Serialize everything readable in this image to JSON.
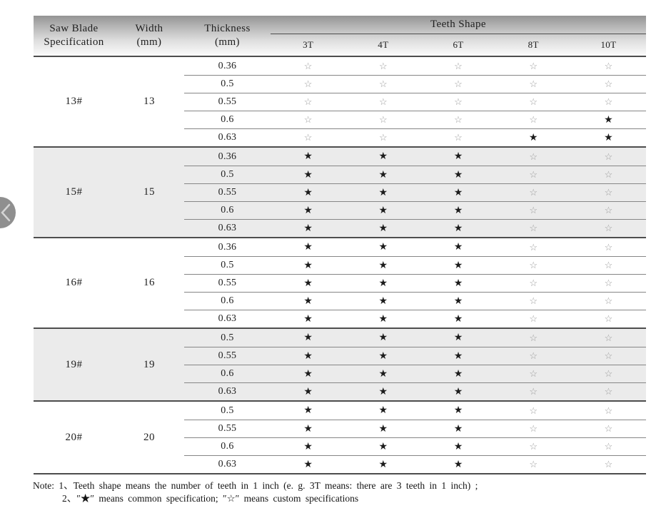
{
  "table": {
    "header": {
      "spec_line1": "Saw Blade",
      "spec_line2": "Specification",
      "width_line1": "Width",
      "width_line2": "(mm)",
      "thickness_line1": "Thickness",
      "thickness_line2": "(mm)",
      "teeth_shape": "Teeth Shape",
      "teeth_cols": [
        "3T",
        "4T",
        "6T",
        "8T",
        "10T"
      ]
    },
    "legend_symbols": {
      "common": "★",
      "custom": "☆"
    },
    "blocks": [
      {
        "spec": "13#",
        "width": "13",
        "shaded": false,
        "rows": [
          {
            "thickness": "0.36",
            "teeth": [
              "custom",
              "custom",
              "custom",
              "custom",
              "custom"
            ]
          },
          {
            "thickness": "0.5",
            "teeth": [
              "custom",
              "custom",
              "custom",
              "custom",
              "custom"
            ]
          },
          {
            "thickness": "0.55",
            "teeth": [
              "custom",
              "custom",
              "custom",
              "custom",
              "custom"
            ]
          },
          {
            "thickness": "0.6",
            "teeth": [
              "custom",
              "custom",
              "custom",
              "custom",
              "common"
            ]
          },
          {
            "thickness": "0.63",
            "teeth": [
              "custom",
              "custom",
              "custom",
              "common",
              "common"
            ]
          }
        ]
      },
      {
        "spec": "15#",
        "width": "15",
        "shaded": true,
        "rows": [
          {
            "thickness": "0.36",
            "teeth": [
              "common",
              "common",
              "common",
              "custom",
              "custom"
            ]
          },
          {
            "thickness": "0.5",
            "teeth": [
              "common",
              "common",
              "common",
              "custom",
              "custom"
            ]
          },
          {
            "thickness": "0.55",
            "teeth": [
              "common",
              "common",
              "common",
              "custom",
              "custom"
            ]
          },
          {
            "thickness": "0.6",
            "teeth": [
              "common",
              "common",
              "common",
              "custom",
              "custom"
            ]
          },
          {
            "thickness": "0.63",
            "teeth": [
              "common",
              "common",
              "common",
              "custom",
              "custom"
            ]
          }
        ]
      },
      {
        "spec": "16#",
        "width": "16",
        "shaded": false,
        "rows": [
          {
            "thickness": "0.36",
            "teeth": [
              "common",
              "common",
              "common",
              "custom",
              "custom"
            ]
          },
          {
            "thickness": "0.5",
            "teeth": [
              "common",
              "common",
              "common",
              "custom",
              "custom"
            ]
          },
          {
            "thickness": "0.55",
            "teeth": [
              "common",
              "common",
              "common",
              "custom",
              "custom"
            ]
          },
          {
            "thickness": "0.6",
            "teeth": [
              "common",
              "common",
              "common",
              "custom",
              "custom"
            ]
          },
          {
            "thickness": "0.63",
            "teeth": [
              "common",
              "common",
              "common",
              "custom",
              "custom"
            ]
          }
        ]
      },
      {
        "spec": "19#",
        "width": "19",
        "shaded": true,
        "rows": [
          {
            "thickness": "0.5",
            "teeth": [
              "common",
              "common",
              "common",
              "custom",
              "custom"
            ]
          },
          {
            "thickness": "0.55",
            "teeth": [
              "common",
              "common",
              "common",
              "custom",
              "custom"
            ]
          },
          {
            "thickness": "0.6",
            "teeth": [
              "common",
              "common",
              "common",
              "custom",
              "custom"
            ]
          },
          {
            "thickness": "0.63",
            "teeth": [
              "common",
              "common",
              "common",
              "custom",
              "custom"
            ]
          }
        ]
      },
      {
        "spec": "20#",
        "width": "20",
        "shaded": false,
        "rows": [
          {
            "thickness": "0.5",
            "teeth": [
              "common",
              "common",
              "common",
              "custom",
              "custom"
            ]
          },
          {
            "thickness": "0.55",
            "teeth": [
              "common",
              "common",
              "common",
              "custom",
              "custom"
            ]
          },
          {
            "thickness": "0.6",
            "teeth": [
              "common",
              "common",
              "common",
              "custom",
              "custom"
            ]
          },
          {
            "thickness": "0.63",
            "teeth": [
              "common",
              "common",
              "common",
              "custom",
              "custom"
            ]
          }
        ]
      }
    ]
  },
  "note": {
    "line1": "Note: 1、Teeth shape means the number of teeth in 1 inch (e. g.  3T  means:  there are 3 teeth in 1 inch) ;",
    "line2": "2、″★″ means common specification;  ″☆″ means custom specifications"
  },
  "colors": {
    "header_gradient_top": "#949494",
    "shaded_block_bg": "#ebebeb",
    "dark_rule": "#4d4d4d",
    "row_rule": "#868686",
    "filled_star": "#1c1c1c",
    "hollow_star": "#9b9b9b",
    "prev_button": "#8f8f8f"
  }
}
